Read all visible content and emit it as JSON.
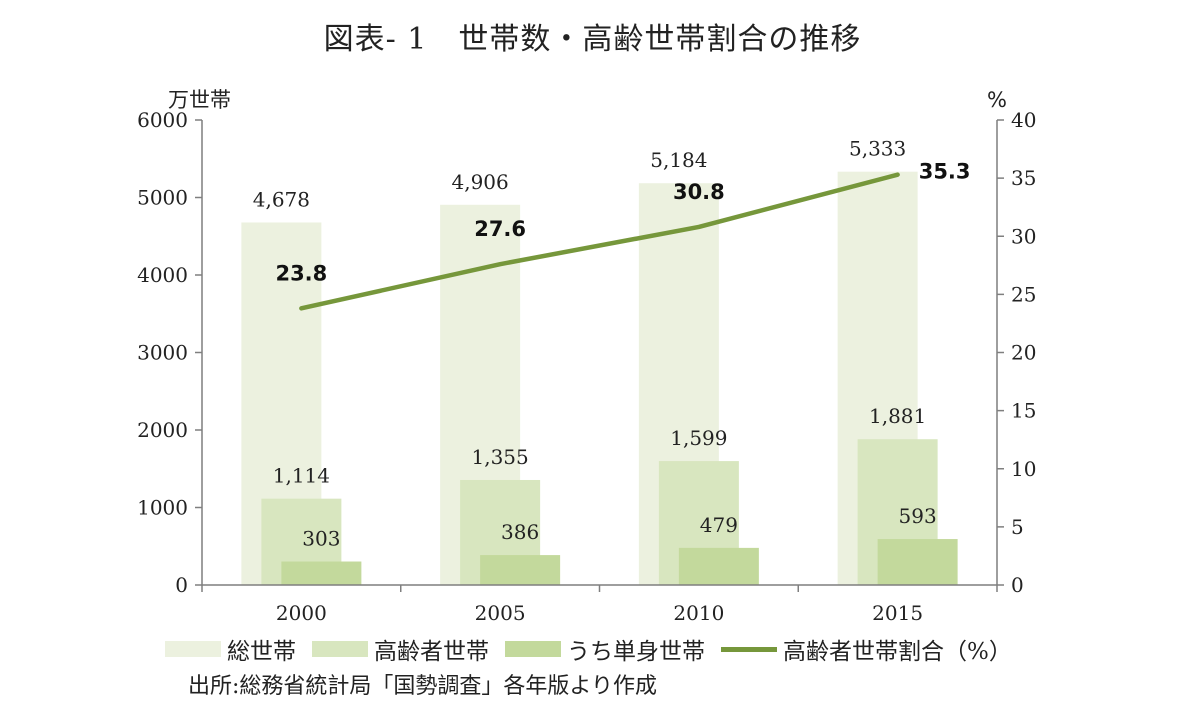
{
  "title": "図表- 1　世帯数・高齢世帯割合の推移",
  "source": "出所:総務省統計局「国勢調査」各年版より作成",
  "chart_data": {
    "type": "bar",
    "categories": [
      "2000",
      "2005",
      "2010",
      "2015"
    ],
    "left_axis_unit": "万世帯",
    "right_axis_unit": "%",
    "ylim_left": [
      0,
      6000
    ],
    "yticks_left": [
      "0",
      "1000",
      "2000",
      "3000",
      "4000",
      "5000",
      "6000"
    ],
    "ylim_right": [
      0,
      40
    ],
    "yticks_right": [
      "0",
      "5",
      "10",
      "15",
      "20",
      "25",
      "30",
      "35",
      "40"
    ],
    "series": [
      {
        "name": "総世帯",
        "kind": "bar",
        "axis": "left",
        "color": "#ecf1df",
        "values": [
          4678,
          4906,
          5184,
          5333
        ],
        "labels": [
          "4,678",
          "4,906",
          "5,184",
          "5,333"
        ]
      },
      {
        "name": "高齢者世帯",
        "kind": "bar",
        "axis": "left",
        "color": "#d8e6bf",
        "values": [
          1114,
          1355,
          1599,
          1881
        ],
        "labels": [
          "1,114",
          "1,355",
          "1,599",
          "1,881"
        ]
      },
      {
        "name": "うち単身世帯",
        "kind": "bar",
        "axis": "left",
        "color": "#c3d99c",
        "values": [
          303,
          386,
          479,
          593
        ],
        "labels": [
          "303",
          "386",
          "479",
          "593"
        ]
      },
      {
        "name": "高齢者世帯割合（%）",
        "kind": "line",
        "axis": "right",
        "color": "#76973b",
        "values": [
          23.8,
          27.6,
          30.8,
          35.3
        ],
        "labels": [
          "23.8",
          "27.6",
          "30.8",
          "35.3"
        ]
      }
    ],
    "grid": false,
    "legend_position": "bottom"
  }
}
